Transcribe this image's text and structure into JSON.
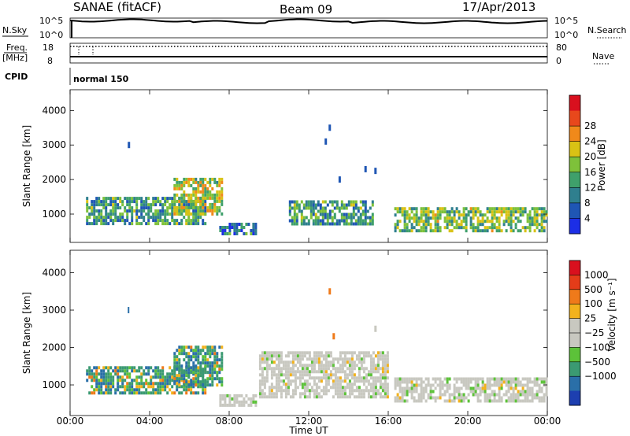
{
  "header": {
    "title": "SANAE (fitACF)",
    "beam": "Beam 09",
    "date": "17/Apr/2013"
  },
  "top_panels": {
    "nsky_label": "N.Sky",
    "nsky_ticks": [
      "10^5",
      "10^0"
    ],
    "nsearch_label": "N.Search",
    "nsearch_ticks": [
      "10^5",
      "10^0"
    ],
    "freq_label_1": "Freq.",
    "freq_label_2": "[MHz]",
    "freq_ticks": [
      "18",
      "8"
    ],
    "nave_label": "Nave",
    "nave_ticks": [
      "80",
      "0"
    ],
    "cpid_label": "CPID",
    "cpid_value": "normal 150"
  },
  "chart_data": [
    {
      "type": "heatmap",
      "name": "power",
      "ylabel": "Slant Range [km]",
      "xlabel": "Time UT",
      "x_ticks": [
        "00:00",
        "04:00",
        "08:00",
        "12:00",
        "16:00",
        "20:00",
        "00:00"
      ],
      "y_ticks": [
        "1000",
        "2000",
        "3000",
        "4000"
      ],
      "xlim_hours": [
        0,
        24
      ],
      "ylim_km": [
        180,
        4600
      ],
      "colorbar_label": "Power [dB]",
      "colorbar_ticks": [
        "4",
        "8",
        "12",
        "16",
        "20",
        "24",
        "28"
      ],
      "colorbar_colors": [
        "#1c2ee6",
        "#1f56b4",
        "#2f7f8e",
        "#3fa06b",
        "#7ec13a",
        "#d9c214",
        "#f0891a",
        "#e8481c",
        "#d9101e"
      ],
      "regions": [
        {
          "t0": 0.8,
          "t1": 6.8,
          "r0": 750,
          "r1": 1500,
          "level": 0.35
        },
        {
          "t0": 5.2,
          "t1": 7.6,
          "r0": 1000,
          "r1": 2050,
          "level": 0.55
        },
        {
          "t0": 7.5,
          "t1": 9.3,
          "r0": 420,
          "r1": 750,
          "level": 0.25
        },
        {
          "t0": 11.0,
          "t1": 15.2,
          "r0": 700,
          "r1": 1400,
          "level": 0.35
        },
        {
          "t0": 16.3,
          "t1": 24.0,
          "r0": 550,
          "r1": 1200,
          "level": 0.45
        }
      ],
      "scatter": [
        {
          "t": 2.9,
          "r": 3000
        },
        {
          "t": 13.0,
          "r": 3500
        },
        {
          "t": 12.8,
          "r": 3100
        },
        {
          "t": 14.8,
          "r": 2300
        },
        {
          "t": 13.5,
          "r": 2000
        },
        {
          "t": 15.3,
          "r": 2250
        }
      ]
    },
    {
      "type": "heatmap",
      "name": "velocity",
      "ylabel": "Slant Range [km]",
      "xlabel": "Time UT",
      "x_ticks": [
        "00:00",
        "04:00",
        "08:00",
        "12:00",
        "16:00",
        "20:00",
        "00:00"
      ],
      "y_ticks": [
        "1000",
        "2000",
        "3000",
        "4000"
      ],
      "xlim_hours": [
        0,
        24
      ],
      "ylim_km": [
        180,
        4600
      ],
      "colorbar_label": "Velocity [m s⁻¹]",
      "colorbar_ticks": [
        "1000",
        "500",
        "100",
        "25",
        "−25",
        "−100",
        "−500",
        "−1000"
      ],
      "colorbar_colors": [
        "#1d3fb0",
        "#2a6fa8",
        "#3b9a72",
        "#5cc239",
        "#c8c8c0",
        "#c8c8c0",
        "#f2b21c",
        "#ef7a1a",
        "#e43c19",
        "#d9101e"
      ],
      "regions": [
        {
          "t0": 0.8,
          "t1": 6.8,
          "r0": 750,
          "r1": 1500,
          "kind": "toward"
        },
        {
          "t0": 5.2,
          "t1": 7.6,
          "r0": 1000,
          "r1": 2050,
          "kind": "toward"
        },
        {
          "t0": 7.5,
          "t1": 9.3,
          "r0": 420,
          "r1": 750,
          "kind": "gray"
        },
        {
          "t0": 9.5,
          "t1": 16.0,
          "r0": 700,
          "r1": 1900,
          "kind": "gray"
        },
        {
          "t0": 16.3,
          "t1": 24.0,
          "r0": 550,
          "r1": 1200,
          "kind": "gray"
        }
      ],
      "scatter": [
        {
          "t": 2.9,
          "r": 3000
        },
        {
          "t": 13.0,
          "r": 3500
        },
        {
          "t": 13.2,
          "r": 2300
        },
        {
          "t": 15.3,
          "r": 2500
        }
      ]
    }
  ]
}
